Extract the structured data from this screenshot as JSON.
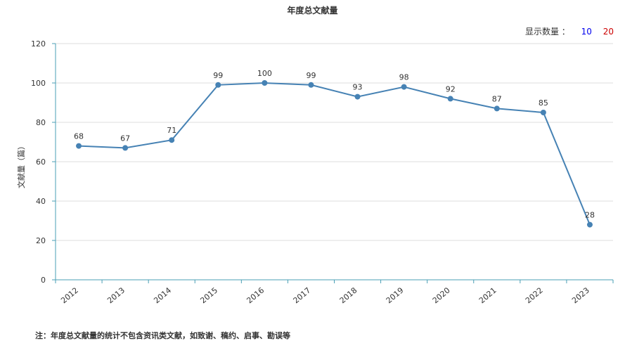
{
  "header": {
    "title": "年度总文献量"
  },
  "display_count": {
    "label": "显示数量 ：",
    "options": [
      "10",
      "20"
    ],
    "colors": [
      "#0000ee",
      "#cc0000"
    ]
  },
  "footnote": "注：年度总文献量的统计不包含资讯类文献，如致谢、稿约、启事、勘误等",
  "chart_data": {
    "type": "line",
    "title": "年度总文献量",
    "xlabel": "",
    "ylabel": "文献量（篇）",
    "categories": [
      "2012",
      "2013",
      "2014",
      "2015",
      "2016",
      "2017",
      "2018",
      "2019",
      "2020",
      "2021",
      "2022",
      "2023"
    ],
    "values": [
      68,
      67,
      71,
      99,
      100,
      99,
      93,
      98,
      92,
      87,
      85,
      28
    ],
    "ylim": [
      0,
      120
    ],
    "yticks": [
      0,
      20,
      40,
      60,
      80,
      100,
      120
    ],
    "grid": true,
    "line_color": "#4682b4"
  }
}
